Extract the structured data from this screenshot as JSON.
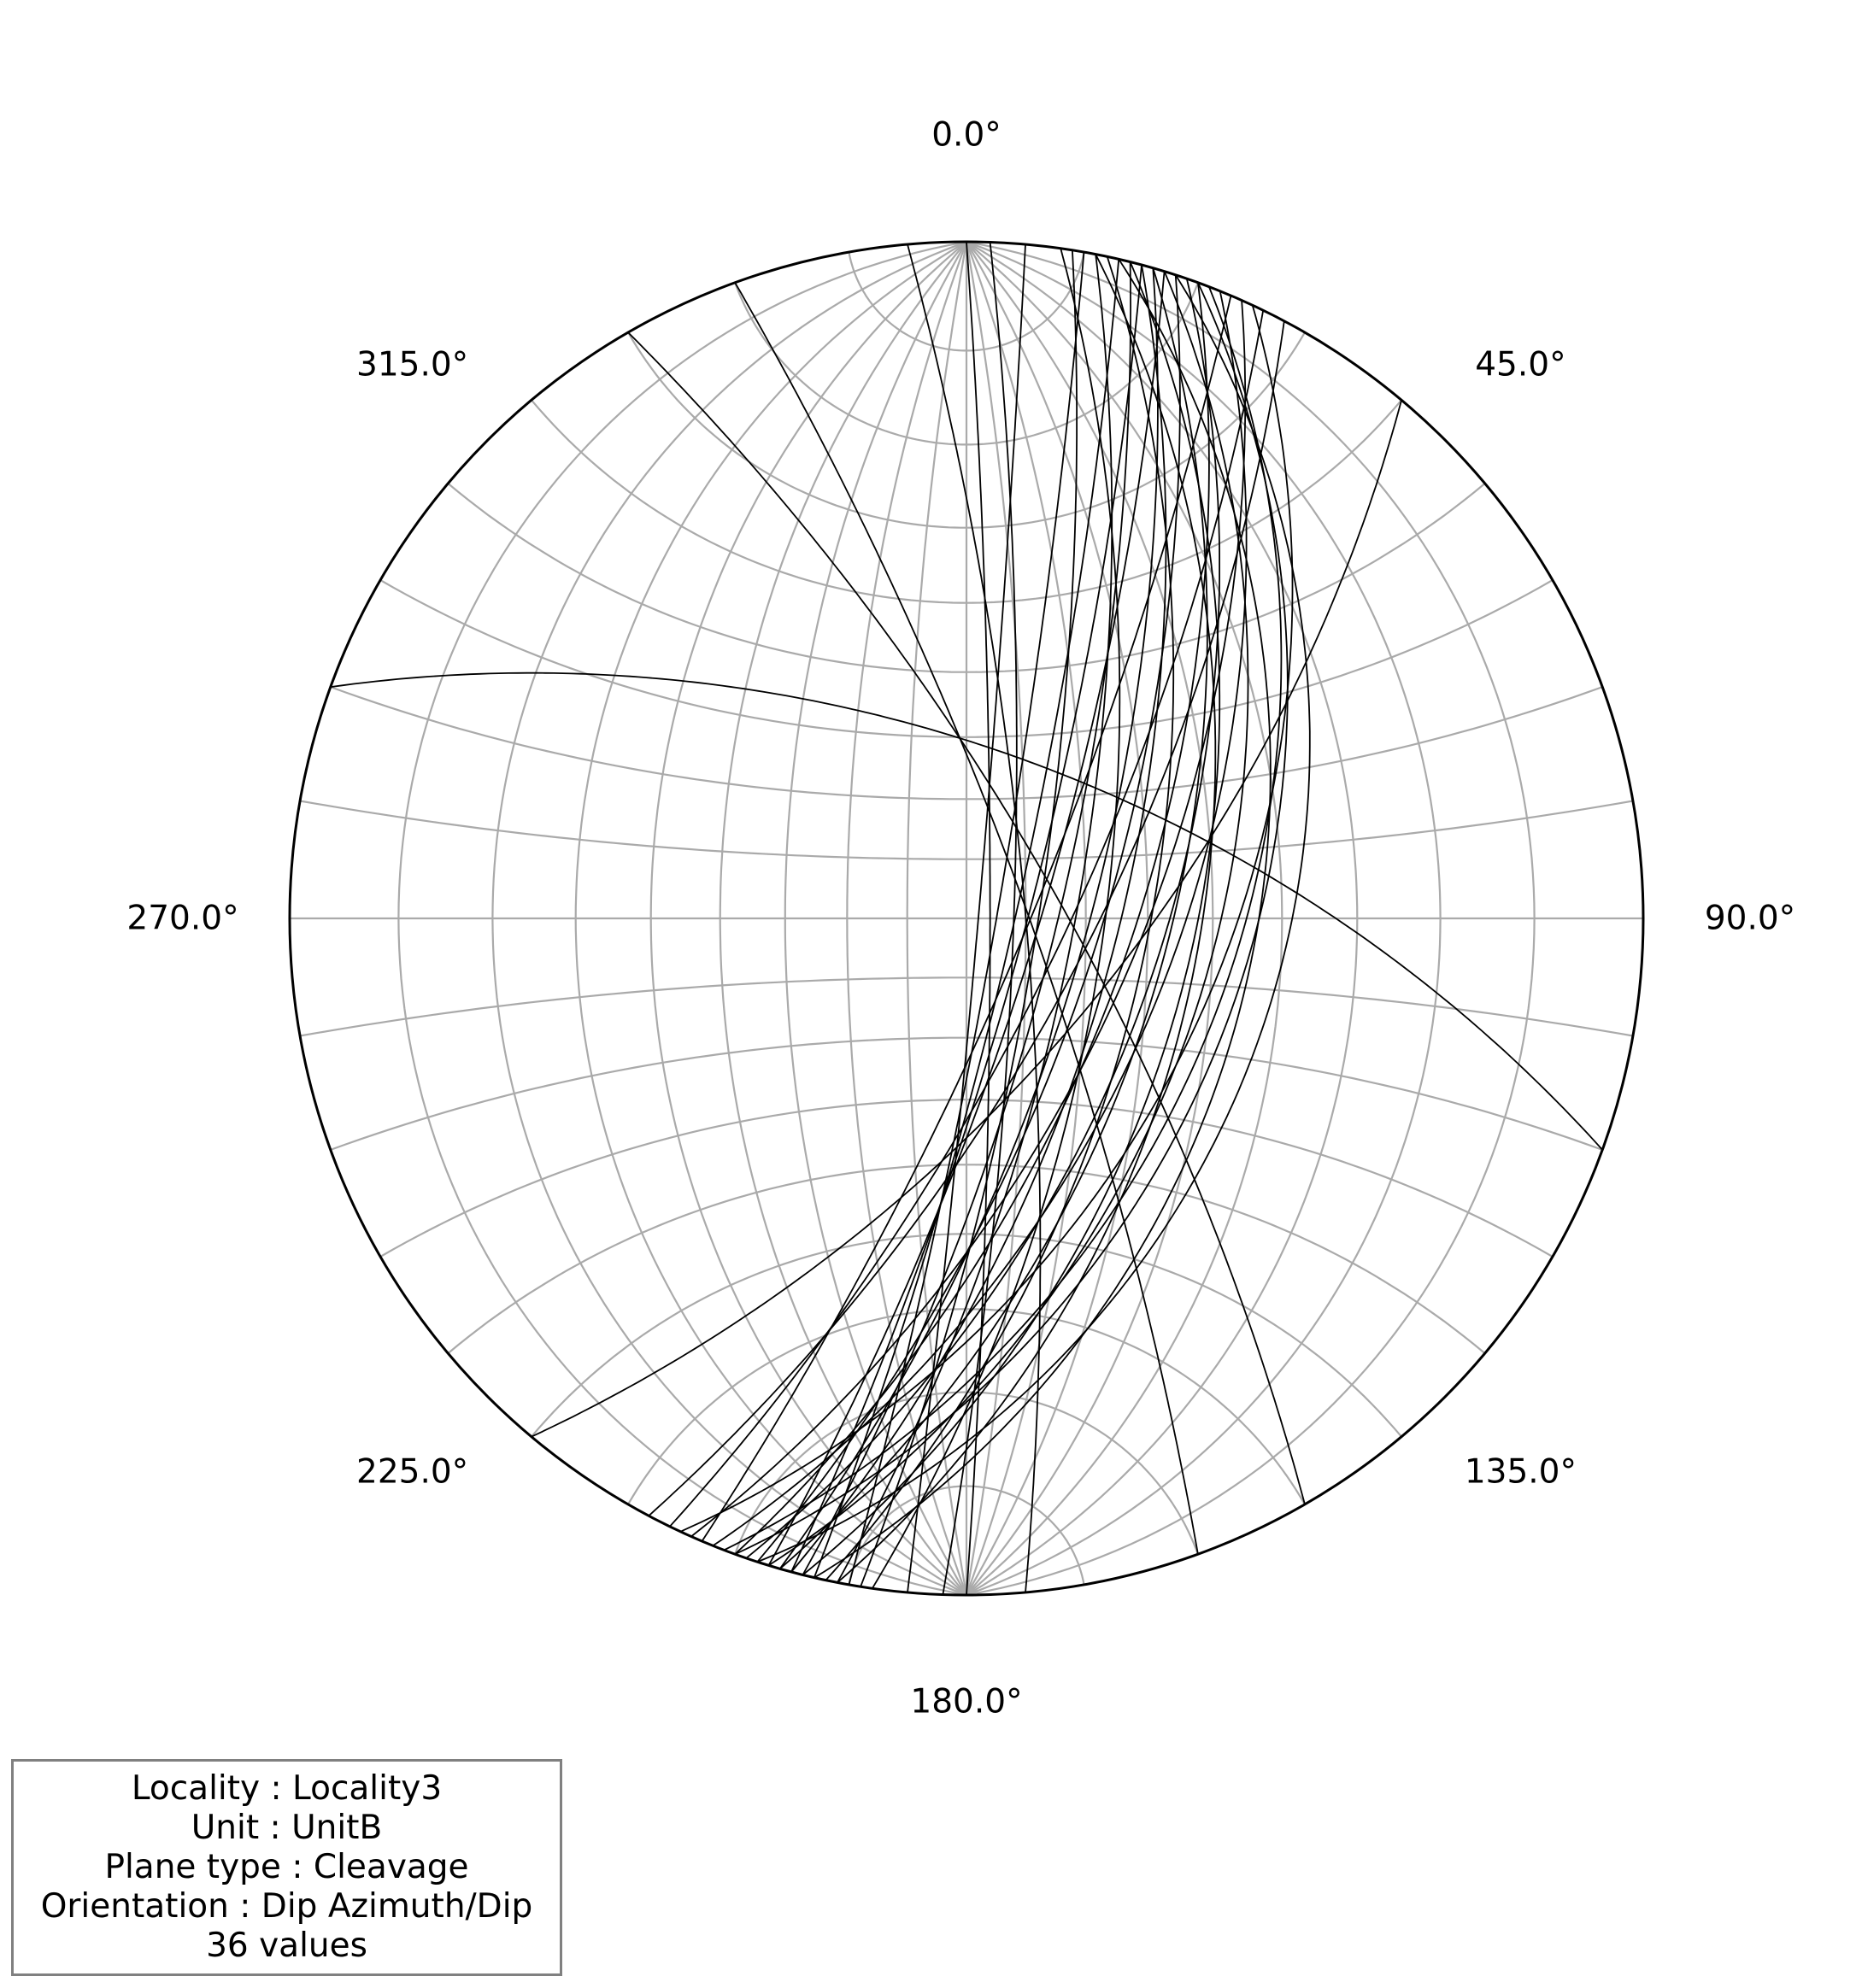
{
  "chart_data": {
    "type": "stereonet",
    "projection": "equal-angle",
    "hemisphere": "lower",
    "grid": true,
    "grid_spacing_deg": 10,
    "azimuth_labels": [
      "0.0°",
      "45.0°",
      "90.0°",
      "135.0°",
      "180.0°",
      "225.0°",
      "270.0°",
      "315.0°"
    ],
    "orientation_convention": "Dip Azimuth/Dip",
    "planes": [
      {
        "dip_azimuth": 100,
        "dip": 85
      },
      {
        "dip_azimuth": 103,
        "dip": 82
      },
      {
        "dip_azimuth": 105,
        "dip": 80
      },
      {
        "dip_azimuth": 107,
        "dip": 78
      },
      {
        "dip_azimuth": 104,
        "dip": 75
      },
      {
        "dip_azimuth": 101,
        "dip": 72
      },
      {
        "dip_azimuth": 106,
        "dip": 70
      },
      {
        "dip_azimuth": 108,
        "dip": 68
      },
      {
        "dip_azimuth": 105,
        "dip": 65
      },
      {
        "dip_azimuth": 110,
        "dip": 63
      },
      {
        "dip_azimuth": 102,
        "dip": 60
      },
      {
        "dip_azimuth": 109,
        "dip": 58
      },
      {
        "dip_azimuth": 112,
        "dip": 56
      },
      {
        "dip_azimuth": 104,
        "dip": 53
      },
      {
        "dip_azimuth": 107,
        "dip": 50
      },
      {
        "dip_azimuth": 111,
        "dip": 47
      },
      {
        "dip_azimuth": 103,
        "dip": 44
      },
      {
        "dip_azimuth": 108,
        "dip": 40
      },
      {
        "dip_azimuth": 114,
        "dip": 62
      },
      {
        "dip_azimuth": 98,
        "dip": 67
      },
      {
        "dip_azimuth": 116,
        "dip": 74
      },
      {
        "dip_azimuth": 113,
        "dip": 80
      },
      {
        "dip_azimuth": 99,
        "dip": 78
      },
      {
        "dip_azimuth": 118,
        "dip": 70
      },
      {
        "dip_azimuth": 106,
        "dip": 57
      },
      {
        "dip_azimuth": 101,
        "dip": 52
      },
      {
        "dip_azimuth": 115,
        "dip": 49
      },
      {
        "dip_azimuth": 110,
        "dip": 45
      },
      {
        "dip_azimuth": 95,
        "dip": 88
      },
      {
        "dip_azimuth": 92,
        "dip": 82
      },
      {
        "dip_azimuth": 90,
        "dip": 86
      },
      {
        "dip_azimuth": 85,
        "dip": 80
      },
      {
        "dip_azimuth": 70,
        "dip": 80
      },
      {
        "dip_azimuth": 60,
        "dip": 75
      },
      {
        "dip_azimuth": 20,
        "dip": 62
      },
      {
        "dip_azimuth": 130,
        "dip": 65
      }
    ],
    "colors": {
      "planes": "#000000",
      "grid": "#aaaaaa",
      "primitive": "#000000",
      "box_border": "#808080"
    }
  },
  "info": {
    "lines": [
      "Locality : Locality3",
      "Unit : UnitB",
      "Plane type : Cleavage",
      "Orientation : Dip Azimuth/Dip",
      "36 values"
    ]
  }
}
